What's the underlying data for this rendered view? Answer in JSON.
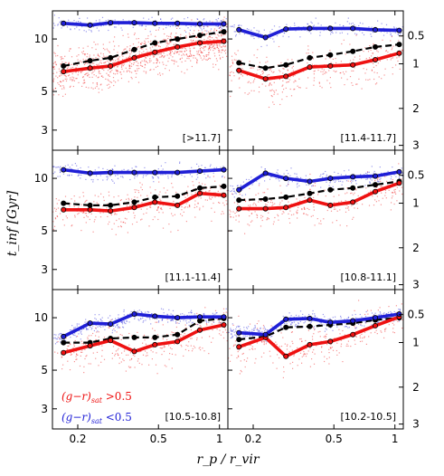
{
  "chart_data": {
    "type": "line",
    "ylabel": "t_inf [Gyr]",
    "xlabel": "r_p / r_vir",
    "x_ticks": [
      "0.2",
      "0.5",
      "1"
    ],
    "y_ticks": [
      "3",
      "5",
      "10"
    ],
    "y2_ticks": [
      "0.5",
      "1",
      "2",
      "3"
    ],
    "xlim": [
      0.15,
      1.1
    ],
    "ylim": [
      2.3,
      14.5
    ],
    "x_scale": "log",
    "y_scale": "log",
    "colors": {
      "red": "#ee1111",
      "blue": "#1f1fd6",
      "median": "#000000"
    },
    "legend": {
      "red_label": "(g−r)",
      "red_sub": "sat",
      "red_cond": " >0.5",
      "blue_label": "(g−r)",
      "blue_sub": "sat",
      "blue_cond": " <0.5",
      "placement": "bottom-left of panel [10.5-10.8]"
    },
    "x": [
      0.17,
      0.23,
      0.29,
      0.38,
      0.48,
      0.62,
      0.8,
      1.05
    ],
    "panels": [
      {
        "label": "[>11.7]",
        "series": [
          {
            "color": "blue",
            "values": [
              12.3,
              12.0,
              12.4,
              12.4,
              12.3,
              12.3,
              12.2,
              12.2
            ]
          },
          {
            "color": "red",
            "values": [
              6.5,
              6.8,
              7.0,
              7.8,
              8.4,
              9.0,
              9.5,
              9.7
            ]
          },
          {
            "color": "median",
            "values": [
              7.0,
              7.5,
              7.8,
              8.7,
              9.5,
              10.0,
              10.5,
              11.0
            ]
          }
        ]
      },
      {
        "label": "[11.4-11.7]",
        "series": [
          {
            "color": "blue",
            "values": [
              11.3,
              10.2,
              11.4,
              11.5,
              11.5,
              11.5,
              11.3,
              11.2
            ]
          },
          {
            "color": "red",
            "values": [
              6.6,
              5.9,
              6.1,
              6.9,
              7.0,
              7.1,
              7.6,
              8.3
            ]
          },
          {
            "color": "median",
            "values": [
              7.3,
              6.8,
              7.1,
              7.8,
              8.1,
              8.5,
              9.0,
              9.3
            ]
          }
        ]
      },
      {
        "label": "[11.1-11.4]",
        "series": [
          {
            "color": "blue",
            "values": [
              11.2,
              10.7,
              10.8,
              10.8,
              10.8,
              10.8,
              11.0,
              11.2
            ]
          },
          {
            "color": "red",
            "values": [
              6.6,
              6.6,
              6.5,
              6.8,
              7.3,
              7.0,
              8.2,
              8.0
            ]
          },
          {
            "color": "median",
            "values": [
              7.2,
              7.0,
              7.0,
              7.3,
              7.8,
              7.9,
              8.8,
              9.0
            ]
          }
        ]
      },
      {
        "label": "[10.8-11.1]",
        "series": [
          {
            "color": "blue",
            "values": [
              8.6,
              10.7,
              10.0,
              9.6,
              10.0,
              10.2,
              10.3,
              10.9
            ]
          },
          {
            "color": "red",
            "values": [
              6.7,
              6.7,
              6.8,
              7.5,
              7.0,
              7.3,
              8.4,
              9.4
            ]
          },
          {
            "color": "median",
            "values": [
              7.5,
              7.6,
              7.8,
              8.2,
              8.6,
              8.8,
              9.2,
              9.6
            ]
          }
        ]
      },
      {
        "label": "[10.5-10.8]",
        "series": [
          {
            "color": "blue",
            "values": [
              7.8,
              9.3,
              9.2,
              10.5,
              10.2,
              10.0,
              10.1,
              10.1
            ]
          },
          {
            "color": "red",
            "values": [
              6.3,
              6.9,
              7.4,
              6.4,
              7.0,
              7.3,
              8.5,
              9.1
            ]
          },
          {
            "color": "median",
            "values": [
              7.2,
              7.2,
              7.6,
              7.7,
              7.7,
              8.0,
              9.6,
              9.9
            ]
          }
        ]
      },
      {
        "label": "[10.2-10.5]",
        "series": [
          {
            "color": "blue",
            "values": [
              8.2,
              8.0,
              9.8,
              9.9,
              9.4,
              9.6,
              10.0,
              10.5
            ]
          },
          {
            "color": "red",
            "values": [
              6.8,
              7.7,
              6.0,
              7.0,
              7.3,
              8.0,
              9.0,
              10.1
            ]
          },
          {
            "color": "median",
            "values": [
              7.5,
              7.8,
              8.8,
              8.9,
              9.1,
              9.3,
              9.7,
              10.0
            ]
          }
        ]
      }
    ]
  }
}
